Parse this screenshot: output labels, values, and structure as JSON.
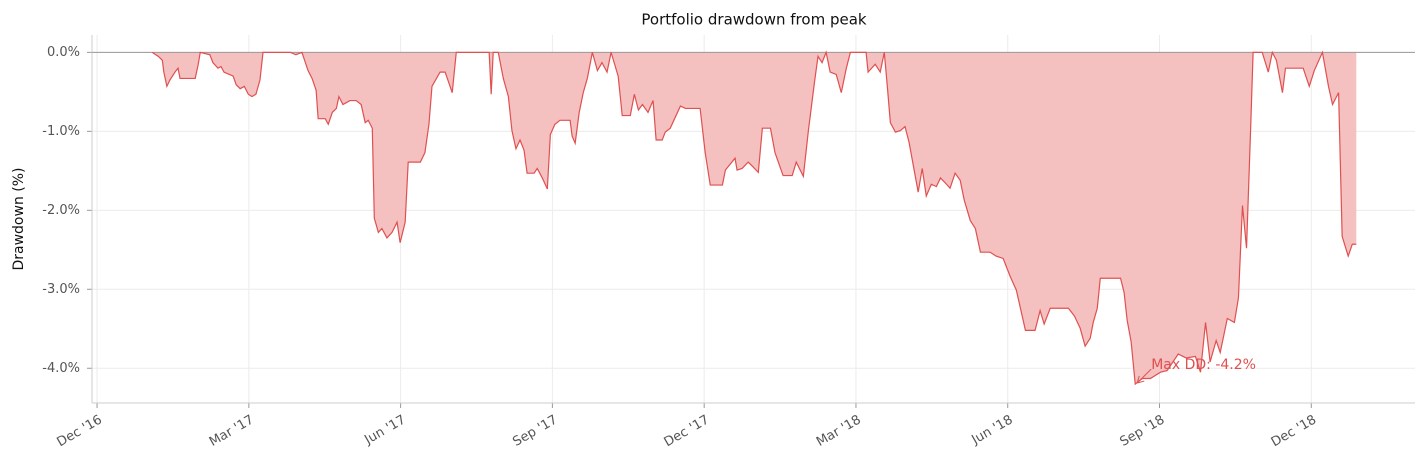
{
  "chart_data": {
    "type": "area",
    "title": "Portfolio drawdown from peak",
    "y_label": "Drawdown (%)",
    "color": "#e05050",
    "fill_color": "#f4c0c0",
    "grid": true,
    "xlim": [
      -0.1,
      26.05
    ],
    "ylim": [
      -4.44,
      0.22
    ],
    "xticks": [
      {
        "value": 0,
        "label": "Dec '16"
      },
      {
        "value": 3,
        "label": "Mar '17"
      },
      {
        "value": 6,
        "label": "Jun '17"
      },
      {
        "value": 9,
        "label": "Sep '17"
      },
      {
        "value": 12,
        "label": "Dec '17"
      },
      {
        "value": 15,
        "label": "Mar '18"
      },
      {
        "value": 18,
        "label": "Jun '18"
      },
      {
        "value": 21,
        "label": "Sep '18"
      },
      {
        "value": 24,
        "label": "Dec '18"
      }
    ],
    "yticks": [
      {
        "value": 0,
        "label": "0.0%"
      },
      {
        "value": -1,
        "label": "-1.0%"
      },
      {
        "value": -2,
        "label": "-2.0%"
      },
      {
        "value": -3,
        "label": "-3.0%"
      },
      {
        "value": -4,
        "label": "-4.0%"
      }
    ],
    "annotation": {
      "text": "Max DD: -4.2%",
      "x": 20.52,
      "y": -4.2
    },
    "x": [
      1.09,
      1.21,
      1.29,
      1.32,
      1.38,
      1.44,
      1.54,
      1.6,
      1.64,
      1.94,
      2.0,
      2.04,
      2.23,
      2.29,
      2.39,
      2.45,
      2.51,
      2.69,
      2.75,
      2.83,
      2.91,
      2.99,
      3.06,
      3.14,
      3.22,
      3.28,
      3.82,
      3.93,
      4.05,
      4.17,
      4.25,
      4.33,
      4.37,
      4.51,
      4.57,
      4.65,
      4.73,
      4.78,
      4.86,
      5.0,
      5.12,
      5.22,
      5.3,
      5.36,
      5.44,
      5.48,
      5.56,
      5.63,
      5.73,
      5.83,
      5.93,
      5.99,
      6.09,
      6.15,
      6.39,
      6.48,
      6.56,
      6.62,
      6.78,
      6.88,
      7.02,
      7.1,
      7.75,
      7.79,
      7.83,
      7.93,
      8.03,
      8.13,
      8.2,
      8.28,
      8.36,
      8.44,
      8.5,
      8.64,
      8.7,
      8.8,
      8.9,
      8.96,
      9.05,
      9.15,
      9.35,
      9.39,
      9.45,
      9.53,
      9.61,
      9.69,
      9.79,
      9.89,
      9.98,
      10.08,
      10.16,
      10.3,
      10.38,
      10.54,
      10.62,
      10.7,
      10.78,
      10.89,
      10.99,
      11.05,
      11.17,
      11.23,
      11.33,
      11.53,
      11.63,
      11.92,
      12.02,
      12.12,
      12.36,
      12.42,
      12.61,
      12.65,
      12.75,
      12.87,
      12.95,
      13.07,
      13.15,
      13.31,
      13.4,
      13.56,
      13.74,
      13.82,
      13.96,
      14.06,
      14.18,
      14.25,
      14.33,
      14.41,
      14.49,
      14.61,
      14.71,
      14.81,
      14.89,
      15.2,
      15.24,
      15.38,
      15.48,
      15.56,
      15.62,
      15.68,
      15.78,
      15.88,
      15.97,
      16.05,
      16.15,
      16.23,
      16.31,
      16.39,
      16.49,
      16.59,
      16.67,
      16.79,
      16.86,
      16.96,
      17.06,
      17.14,
      17.26,
      17.36,
      17.46,
      17.65,
      17.77,
      17.91,
      18.05,
      18.17,
      18.35,
      18.54,
      18.64,
      18.72,
      18.84,
      19.2,
      19.32,
      19.43,
      19.53,
      19.63,
      19.69,
      19.77,
      19.83,
      20.23,
      20.3,
      20.36,
      20.44,
      20.52,
      20.66,
      20.82,
      21.02,
      21.15,
      21.37,
      21.53,
      21.71,
      21.81,
      21.91,
      22.0,
      22.12,
      22.2,
      22.34,
      22.48,
      22.56,
      22.64,
      22.72,
      22.8,
      22.85,
      23.03,
      23.15,
      23.23,
      23.31,
      23.43,
      23.49,
      23.84,
      23.96,
      24.06,
      24.22,
      24.34,
      24.42,
      24.54,
      24.61,
      24.73,
      24.81,
      24.89
    ],
    "values": [
      0,
      -0.05,
      -0.1,
      -0.25,
      -0.43,
      -0.35,
      -0.25,
      -0.2,
      -0.33,
      -0.33,
      -0.15,
      0,
      -0.03,
      -0.13,
      -0.2,
      -0.18,
      -0.25,
      -0.3,
      -0.41,
      -0.46,
      -0.43,
      -0.53,
      -0.56,
      -0.53,
      -0.35,
      0,
      0,
      -0.03,
      0,
      -0.23,
      -0.33,
      -0.48,
      -0.84,
      -0.84,
      -0.91,
      -0.76,
      -0.71,
      -0.56,
      -0.66,
      -0.61,
      -0.61,
      -0.66,
      -0.89,
      -0.86,
      -0.96,
      -2.1,
      -2.28,
      -2.23,
      -2.35,
      -2.28,
      -2.15,
      -2.41,
      -2.15,
      -1.39,
      -1.39,
      -1.27,
      -0.91,
      -0.43,
      -0.25,
      -0.25,
      -0.51,
      0,
      0,
      -0.53,
      0,
      0,
      -0.33,
      -0.56,
      -0.99,
      -1.22,
      -1.11,
      -1.24,
      -1.53,
      -1.53,
      -1.47,
      -1.59,
      -1.73,
      -1.04,
      -0.91,
      -0.86,
      -0.86,
      -1.06,
      -1.15,
      -0.76,
      -0.51,
      -0.33,
      0,
      -0.23,
      -0.13,
      -0.25,
      0,
      -0.3,
      -0.8,
      -0.8,
      -0.53,
      -0.73,
      -0.66,
      -0.76,
      -0.61,
      -1.11,
      -1.11,
      -1.01,
      -0.96,
      -0.68,
      -0.71,
      -0.71,
      -1.27,
      -1.68,
      -1.68,
      -1.49,
      -1.34,
      -1.49,
      -1.47,
      -1.39,
      -1.44,
      -1.52,
      -0.96,
      -0.96,
      -1.27,
      -1.56,
      -1.56,
      -1.39,
      -1.57,
      -0.99,
      -0.38,
      -0.05,
      -0.13,
      0,
      -0.25,
      -0.28,
      -0.51,
      -0.2,
      0,
      0,
      -0.25,
      -0.15,
      -0.25,
      0,
      -0.43,
      -0.89,
      -1.01,
      -0.99,
      -0.94,
      -1.14,
      -1.49,
      -1.77,
      -1.47,
      -1.82,
      -1.67,
      -1.7,
      -1.59,
      -1.67,
      -1.72,
      -1.53,
      -1.62,
      -1.87,
      -2.13,
      -2.23,
      -2.53,
      -2.53,
      -2.58,
      -2.61,
      -2.84,
      -3.01,
      -3.52,
      -3.52,
      -3.27,
      -3.44,
      -3.24,
      -3.24,
      -3.34,
      -3.49,
      -3.72,
      -3.62,
      -3.42,
      -3.24,
      -2.86,
      -2.86,
      -3.04,
      -3.39,
      -3.67,
      -4.2,
      -4.13,
      -4.13,
      -4.05,
      -4.03,
      -3.82,
      -3.87,
      -3.85,
      -4.05,
      -3.42,
      -3.92,
      -3.65,
      -3.8,
      -3.37,
      -3.42,
      -3.11,
      -1.94,
      -2.48,
      -0.99,
      0,
      0,
      -0.25,
      0,
      -0.1,
      -0.51,
      -0.2,
      -0.2,
      -0.43,
      -0.23,
      0,
      -0.43,
      -0.66,
      -0.51,
      -2.33,
      -2.58,
      -2.43,
      -2.43
    ]
  }
}
